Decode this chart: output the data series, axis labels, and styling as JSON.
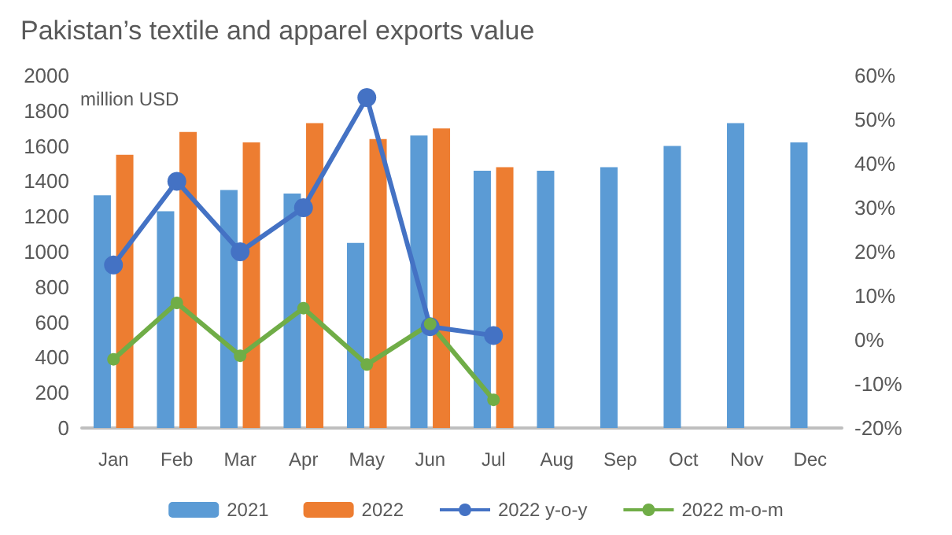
{
  "chart_data": {
    "type": "bar",
    "title": "Pakistan’s textile and apparel exports value",
    "ylabel": "million USD",
    "categories": [
      "Jan",
      "Feb",
      "Mar",
      "Apr",
      "May",
      "Jun",
      "Jul",
      "Aug",
      "Sep",
      "Oct",
      "Nov",
      "Dec"
    ],
    "series": [
      {
        "name": "2021",
        "color": "#5b9bd5",
        "values": [
          1320,
          1230,
          1350,
          1330,
          1050,
          1660,
          1460,
          1460,
          1480,
          1600,
          1730,
          1620
        ]
      },
      {
        "name": "2022",
        "color": "#ed7d31",
        "values": [
          1550,
          1680,
          1620,
          1730,
          1640,
          1700,
          1480,
          null,
          null,
          null,
          null,
          null
        ]
      },
      {
        "name": "2022 y-o-y",
        "type": "line",
        "axis": "y2",
        "color": "#4472c4",
        "values": [
          17,
          36,
          20,
          30,
          55,
          3,
          1,
          null,
          null,
          null,
          null,
          null
        ]
      },
      {
        "name": "2022 m-o-m",
        "type": "line",
        "axis": "y2",
        "color": "#70ad47",
        "values": [
          -4.4,
          8.4,
          -3.6,
          7.2,
          -5.6,
          3.6,
          -13.6,
          null,
          null,
          null,
          null,
          null
        ]
      }
    ],
    "ylim": [
      0,
      2000
    ],
    "yticks": [
      0,
      200,
      400,
      600,
      800,
      1000,
      1200,
      1400,
      1600,
      1800,
      2000
    ],
    "y2lim": [
      -20,
      60
    ],
    "y2ticks": [
      {
        "value": -20,
        "label": "-20%"
      },
      {
        "value": -10,
        "label": "-10%"
      },
      {
        "value": 0,
        "label": "0%"
      },
      {
        "value": 10,
        "label": "10%"
      },
      {
        "value": 20,
        "label": "20%"
      },
      {
        "value": 30,
        "label": "30%"
      },
      {
        "value": 40,
        "label": "40%"
      },
      {
        "value": 50,
        "label": "50%"
      },
      {
        "value": 60,
        "label": "60%"
      }
    ],
    "grid": false,
    "legend": "bottom",
    "marker": "circle"
  }
}
